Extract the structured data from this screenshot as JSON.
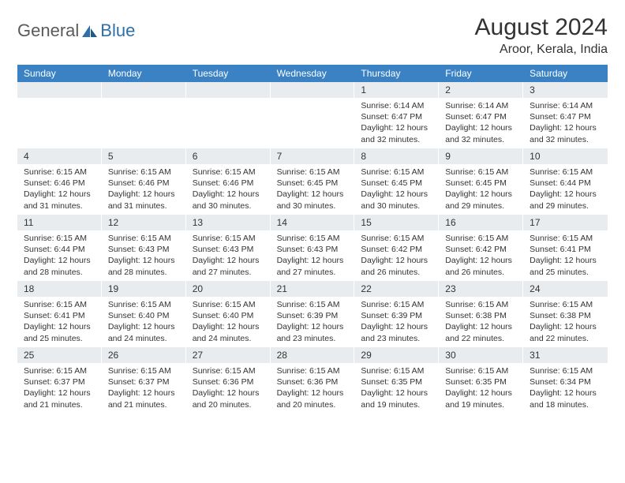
{
  "brand": {
    "part1": "General",
    "part2": "Blue",
    "part1_color": "#6b6b6b",
    "part2_color": "#2f6fa8",
    "icon_color": "#2f6fa8"
  },
  "title": "August 2024",
  "location": "Aroor, Kerala, India",
  "colors": {
    "header_bg": "#3b82c4",
    "header_text": "#ffffff",
    "daynum_bg": "#e9ecef",
    "text": "#333333",
    "page_bg": "#ffffff"
  },
  "day_headers": [
    "Sunday",
    "Monday",
    "Tuesday",
    "Wednesday",
    "Thursday",
    "Friday",
    "Saturday"
  ],
  "weeks": [
    [
      {
        "n": "",
        "sr": "",
        "ss": "",
        "dl": ""
      },
      {
        "n": "",
        "sr": "",
        "ss": "",
        "dl": ""
      },
      {
        "n": "",
        "sr": "",
        "ss": "",
        "dl": ""
      },
      {
        "n": "",
        "sr": "",
        "ss": "",
        "dl": ""
      },
      {
        "n": "1",
        "sr": "Sunrise: 6:14 AM",
        "ss": "Sunset: 6:47 PM",
        "dl": "Daylight: 12 hours and 32 minutes."
      },
      {
        "n": "2",
        "sr": "Sunrise: 6:14 AM",
        "ss": "Sunset: 6:47 PM",
        "dl": "Daylight: 12 hours and 32 minutes."
      },
      {
        "n": "3",
        "sr": "Sunrise: 6:14 AM",
        "ss": "Sunset: 6:47 PM",
        "dl": "Daylight: 12 hours and 32 minutes."
      }
    ],
    [
      {
        "n": "4",
        "sr": "Sunrise: 6:15 AM",
        "ss": "Sunset: 6:46 PM",
        "dl": "Daylight: 12 hours and 31 minutes."
      },
      {
        "n": "5",
        "sr": "Sunrise: 6:15 AM",
        "ss": "Sunset: 6:46 PM",
        "dl": "Daylight: 12 hours and 31 minutes."
      },
      {
        "n": "6",
        "sr": "Sunrise: 6:15 AM",
        "ss": "Sunset: 6:46 PM",
        "dl": "Daylight: 12 hours and 30 minutes."
      },
      {
        "n": "7",
        "sr": "Sunrise: 6:15 AM",
        "ss": "Sunset: 6:45 PM",
        "dl": "Daylight: 12 hours and 30 minutes."
      },
      {
        "n": "8",
        "sr": "Sunrise: 6:15 AM",
        "ss": "Sunset: 6:45 PM",
        "dl": "Daylight: 12 hours and 30 minutes."
      },
      {
        "n": "9",
        "sr": "Sunrise: 6:15 AM",
        "ss": "Sunset: 6:45 PM",
        "dl": "Daylight: 12 hours and 29 minutes."
      },
      {
        "n": "10",
        "sr": "Sunrise: 6:15 AM",
        "ss": "Sunset: 6:44 PM",
        "dl": "Daylight: 12 hours and 29 minutes."
      }
    ],
    [
      {
        "n": "11",
        "sr": "Sunrise: 6:15 AM",
        "ss": "Sunset: 6:44 PM",
        "dl": "Daylight: 12 hours and 28 minutes."
      },
      {
        "n": "12",
        "sr": "Sunrise: 6:15 AM",
        "ss": "Sunset: 6:43 PM",
        "dl": "Daylight: 12 hours and 28 minutes."
      },
      {
        "n": "13",
        "sr": "Sunrise: 6:15 AM",
        "ss": "Sunset: 6:43 PM",
        "dl": "Daylight: 12 hours and 27 minutes."
      },
      {
        "n": "14",
        "sr": "Sunrise: 6:15 AM",
        "ss": "Sunset: 6:43 PM",
        "dl": "Daylight: 12 hours and 27 minutes."
      },
      {
        "n": "15",
        "sr": "Sunrise: 6:15 AM",
        "ss": "Sunset: 6:42 PM",
        "dl": "Daylight: 12 hours and 26 minutes."
      },
      {
        "n": "16",
        "sr": "Sunrise: 6:15 AM",
        "ss": "Sunset: 6:42 PM",
        "dl": "Daylight: 12 hours and 26 minutes."
      },
      {
        "n": "17",
        "sr": "Sunrise: 6:15 AM",
        "ss": "Sunset: 6:41 PM",
        "dl": "Daylight: 12 hours and 25 minutes."
      }
    ],
    [
      {
        "n": "18",
        "sr": "Sunrise: 6:15 AM",
        "ss": "Sunset: 6:41 PM",
        "dl": "Daylight: 12 hours and 25 minutes."
      },
      {
        "n": "19",
        "sr": "Sunrise: 6:15 AM",
        "ss": "Sunset: 6:40 PM",
        "dl": "Daylight: 12 hours and 24 minutes."
      },
      {
        "n": "20",
        "sr": "Sunrise: 6:15 AM",
        "ss": "Sunset: 6:40 PM",
        "dl": "Daylight: 12 hours and 24 minutes."
      },
      {
        "n": "21",
        "sr": "Sunrise: 6:15 AM",
        "ss": "Sunset: 6:39 PM",
        "dl": "Daylight: 12 hours and 23 minutes."
      },
      {
        "n": "22",
        "sr": "Sunrise: 6:15 AM",
        "ss": "Sunset: 6:39 PM",
        "dl": "Daylight: 12 hours and 23 minutes."
      },
      {
        "n": "23",
        "sr": "Sunrise: 6:15 AM",
        "ss": "Sunset: 6:38 PM",
        "dl": "Daylight: 12 hours and 22 minutes."
      },
      {
        "n": "24",
        "sr": "Sunrise: 6:15 AM",
        "ss": "Sunset: 6:38 PM",
        "dl": "Daylight: 12 hours and 22 minutes."
      }
    ],
    [
      {
        "n": "25",
        "sr": "Sunrise: 6:15 AM",
        "ss": "Sunset: 6:37 PM",
        "dl": "Daylight: 12 hours and 21 minutes."
      },
      {
        "n": "26",
        "sr": "Sunrise: 6:15 AM",
        "ss": "Sunset: 6:37 PM",
        "dl": "Daylight: 12 hours and 21 minutes."
      },
      {
        "n": "27",
        "sr": "Sunrise: 6:15 AM",
        "ss": "Sunset: 6:36 PM",
        "dl": "Daylight: 12 hours and 20 minutes."
      },
      {
        "n": "28",
        "sr": "Sunrise: 6:15 AM",
        "ss": "Sunset: 6:36 PM",
        "dl": "Daylight: 12 hours and 20 minutes."
      },
      {
        "n": "29",
        "sr": "Sunrise: 6:15 AM",
        "ss": "Sunset: 6:35 PM",
        "dl": "Daylight: 12 hours and 19 minutes."
      },
      {
        "n": "30",
        "sr": "Sunrise: 6:15 AM",
        "ss": "Sunset: 6:35 PM",
        "dl": "Daylight: 12 hours and 19 minutes."
      },
      {
        "n": "31",
        "sr": "Sunrise: 6:15 AM",
        "ss": "Sunset: 6:34 PM",
        "dl": "Daylight: 12 hours and 18 minutes."
      }
    ]
  ]
}
